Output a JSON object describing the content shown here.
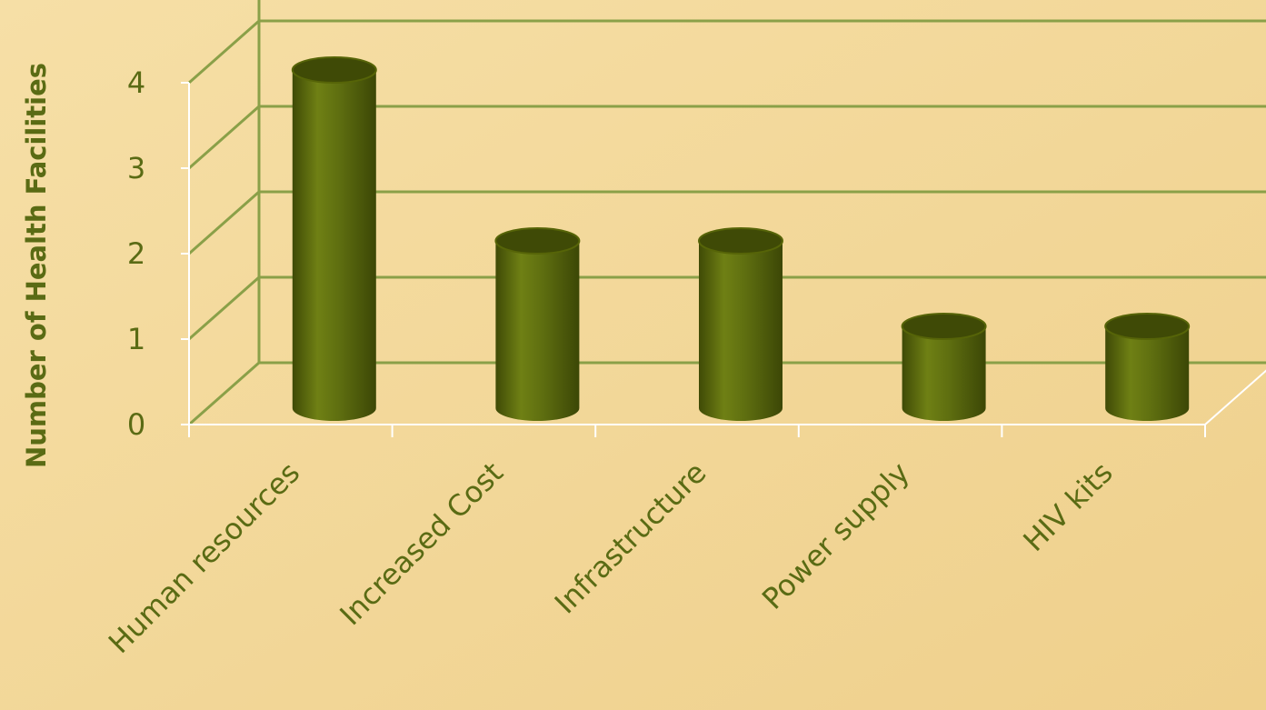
{
  "chart_data": {
    "type": "bar",
    "title": "",
    "xlabel": "",
    "ylabel": "Number of Health Facilities",
    "categories": [
      "Human resources",
      "Increased Cost",
      "Infrastructure",
      "Power supply",
      "HIV kits"
    ],
    "values": [
      4,
      2,
      2,
      1,
      1
    ],
    "ylim": [
      0,
      4
    ],
    "yticks": [
      0,
      1,
      2,
      3,
      4
    ],
    "grid": true,
    "legend": "none",
    "colors": {
      "bar": "#5f6f10",
      "bar_dark": "#3f4a06",
      "grid": "#8aa048",
      "axis": "#ffffff",
      "text": "#5a6b14",
      "background": "#f3d89a"
    }
  }
}
